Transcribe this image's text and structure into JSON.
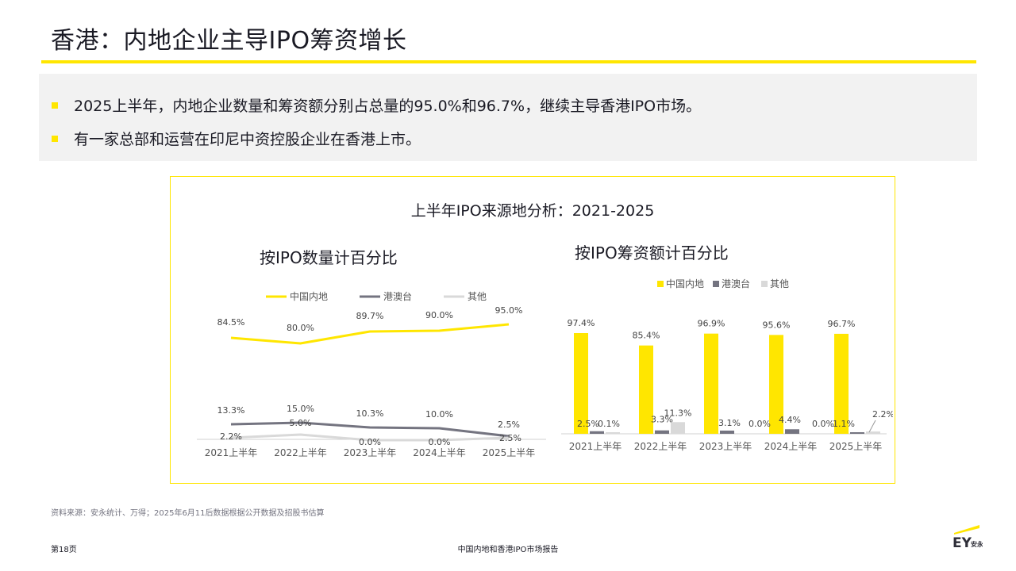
{
  "title": "香港：内地企业主导IPO筹资增长",
  "bullets": [
    "2025上半年，内地企业数量和筹资额分别占总量的95.0%和96.7%，继续主导香港IPO市场。",
    "有一家总部和运营在印尼中资控股企业在香港上市。"
  ],
  "panel_title": "上半年IPO来源地分析：2021-2025",
  "colors": {
    "yellow": "#ffe600",
    "dark_grey": "#747480",
    "light_grey": "#d9d9d9",
    "axis": "#d0d0d0"
  },
  "chart_data": [
    {
      "type": "line",
      "title": "按IPO数量计百分比",
      "legend_position": "top",
      "categories": [
        "2021上半年",
        "2022上半年",
        "2023上半年",
        "2024上半年",
        "2025上半年"
      ],
      "series": [
        {
          "name": "中国内地",
          "values": [
            84.5,
            80.0,
            89.7,
            90.0,
            95.0
          ],
          "labels": [
            "84.5%",
            "80.0%",
            "89.7%",
            "90.0%",
            "95.0%"
          ]
        },
        {
          "name": "港澳台",
          "values": [
            13.3,
            15.0,
            10.3,
            10.0,
            2.5
          ],
          "labels": [
            "13.3%",
            "15.0%",
            "10.3%",
            "10.0%",
            "2.5%"
          ]
        },
        {
          "name": "其他",
          "values": [
            2.2,
            5.0,
            0.0,
            0.0,
            2.5
          ],
          "labels": [
            "2.2%",
            "5.0%",
            "0.0%",
            "0.0%",
            "2.5%"
          ]
        }
      ]
    },
    {
      "type": "bar",
      "title": "按IPO筹资额计百分比",
      "legend_position": "top",
      "categories": [
        "2021上半年",
        "2022上半年",
        "2023上半年",
        "2024上半年",
        "2025上半年"
      ],
      "series": [
        {
          "name": "中国内地",
          "values": [
            97.4,
            85.4,
            96.9,
            95.6,
            96.7
          ],
          "labels": [
            "97.4%",
            "85.4%",
            "96.9%",
            "95.6%",
            "96.7%"
          ]
        },
        {
          "name": "港澳台",
          "values": [
            2.5,
            3.3,
            3.1,
            4.4,
            1.1
          ],
          "labels": [
            "2.5%",
            "3.3%",
            "3.1%",
            "4.4%",
            "1.1%"
          ]
        },
        {
          "name": "其他",
          "values": [
            0.1,
            11.3,
            0.0,
            0.0,
            2.2
          ],
          "labels": [
            "0.1%",
            "11.3%",
            "0.0%",
            "0.0%",
            "2.2%"
          ]
        }
      ]
    }
  ],
  "footnote": "资料来源：安永统计、万得；2025年6月11后数据根据公开数据及招股书估算",
  "page_number": "第18页",
  "report_name": "中国内地和香港IPO市场报告",
  "logo_text": "EY安永"
}
